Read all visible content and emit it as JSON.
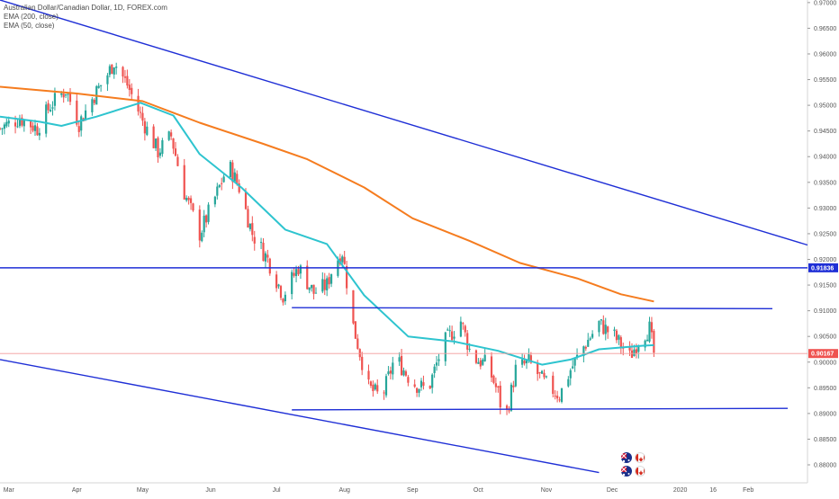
{
  "legend": {
    "symbol_line": "Australian Dollar/Canadian Dollar, 1D, FOREX.com",
    "ema200_label": "EMA (200, close)",
    "ema50_label": "EMA (50, close)"
  },
  "colors": {
    "up_candle": "#26a69a",
    "down_candle": "#ef5350",
    "ema200": "#f57c1f",
    "ema50": "#2ec4cf",
    "trendline": "#1f2fd6",
    "current_price_line": "#f29b9b",
    "current_price_tag": "#ef5350",
    "level_tag": "#1f2fd6"
  },
  "icons": [
    "australia-flag-icon",
    "canada-flag-icon",
    "event-flag-icon"
  ],
  "chart_data": {
    "type": "candlestick",
    "x_axis_labels": [
      "Mar",
      "Apr",
      "May",
      "Jun",
      "Jul",
      "Aug",
      "Sep",
      "Oct",
      "Nov",
      "Dec",
      "2020",
      "16",
      "Feb"
    ],
    "y_axis_labels": [
      "0.97000",
      "0.96500",
      "0.96000",
      "0.95500",
      "0.95000",
      "0.94500",
      "0.94000",
      "0.93500",
      "0.93000",
      "0.92500",
      "0.92000",
      "0.91500",
      "0.91000",
      "0.90500",
      "0.90000",
      "0.89500",
      "0.89000",
      "0.88500",
      "0.88000"
    ],
    "ylim": [
      0.8765,
      0.9705
    ],
    "price_tags": [
      {
        "label": "0.91836",
        "value": 0.91836,
        "role": "horizontal-level"
      },
      {
        "label": "0.90167",
        "value": 0.90167,
        "role": "current-price"
      }
    ],
    "trend_lines": [
      {
        "name": "upper-descending",
        "points": [
          [
            "2019-02-25",
            0.9705
          ],
          [
            "2020-02-28",
            0.9228
          ]
        ]
      },
      {
        "name": "lower-descending",
        "points": [
          [
            "2019-02-25",
            0.9005
          ],
          [
            "2019-11-25",
            0.8785
          ]
        ]
      },
      {
        "name": "resistance",
        "points": [
          [
            "2019-07-08",
            0.9106
          ],
          [
            "2020-02-12",
            0.9104
          ]
        ]
      },
      {
        "name": "support",
        "points": [
          [
            "2019-07-08",
            0.8907
          ],
          [
            "2020-02-19",
            0.891
          ]
        ]
      }
    ],
    "series": [
      {
        "name": "EMA (200, close)",
        "points": [
          [
            "2019-02-25",
            0.9536
          ],
          [
            "2019-04-01",
            0.9523
          ],
          [
            "2019-05-01",
            0.9508
          ],
          [
            "2019-05-27",
            0.9466
          ],
          [
            "2019-06-25",
            0.9425
          ],
          [
            "2019-07-15",
            0.9395
          ],
          [
            "2019-08-10",
            0.934
          ],
          [
            "2019-09-01",
            0.928
          ],
          [
            "2019-09-27",
            0.9236
          ],
          [
            "2019-10-20",
            0.9193
          ],
          [
            "2019-11-15",
            0.9163
          ],
          [
            "2019-12-05",
            0.9132
          ],
          [
            "2019-12-20",
            0.9118
          ]
        ]
      },
      {
        "name": "EMA (50, close)",
        "points": [
          [
            "2019-02-25",
            0.9478
          ],
          [
            "2019-03-15",
            0.9468
          ],
          [
            "2019-03-25",
            0.946
          ],
          [
            "2019-04-10",
            0.9478
          ],
          [
            "2019-04-30",
            0.9505
          ],
          [
            "2019-05-15",
            0.948
          ],
          [
            "2019-05-27",
            0.9405
          ],
          [
            "2019-06-15",
            0.934
          ],
          [
            "2019-07-05",
            0.9258
          ],
          [
            "2019-07-24",
            0.923
          ],
          [
            "2019-08-10",
            0.913
          ],
          [
            "2019-08-30",
            0.905
          ],
          [
            "2019-09-20",
            0.904
          ],
          [
            "2019-10-10",
            0.9022
          ],
          [
            "2019-10-30",
            0.8995
          ],
          [
            "2019-11-12",
            0.9005
          ],
          [
            "2019-11-25",
            0.9025
          ],
          [
            "2019-12-15",
            0.9032
          ],
          [
            "2019-12-20",
            0.9033
          ]
        ]
      }
    ],
    "price_path": [
      [
        "2019-02-25",
        0.9455
      ],
      [
        "2019-03-06",
        0.9475
      ],
      [
        "2019-03-14",
        0.9455
      ],
      [
        "2019-03-20",
        0.95
      ],
      [
        "2019-03-27",
        0.953
      ],
      [
        "2019-04-02",
        0.9465
      ],
      [
        "2019-04-09",
        0.952
      ],
      [
        "2019-04-15",
        0.956
      ],
      [
        "2019-04-18",
        0.9585
      ],
      [
        "2019-04-24",
        0.954
      ],
      [
        "2019-05-01",
        0.947
      ],
      [
        "2019-05-08",
        0.941
      ],
      [
        "2019-05-14",
        0.944
      ],
      [
        "2019-05-20",
        0.933
      ],
      [
        "2019-05-27",
        0.925
      ],
      [
        "2019-06-04",
        0.933
      ],
      [
        "2019-06-09",
        0.9385
      ],
      [
        "2019-06-14",
        0.934
      ],
      [
        "2019-06-20",
        0.925
      ],
      [
        "2019-06-27",
        0.92
      ],
      [
        "2019-07-04",
        0.913
      ],
      [
        "2019-07-11",
        0.9185
      ],
      [
        "2019-07-18",
        0.9135
      ],
      [
        "2019-07-24",
        0.915
      ],
      [
        "2019-07-27",
        0.919
      ],
      [
        "2019-07-31",
        0.9215
      ],
      [
        "2019-08-05",
        0.907
      ],
      [
        "2019-08-12",
        0.895
      ],
      [
        "2019-08-18",
        0.893
      ],
      [
        "2019-08-24",
        0.901
      ],
      [
        "2019-09-01",
        0.896
      ],
      [
        "2019-09-08",
        0.8945
      ],
      [
        "2019-09-15",
        0.9035
      ],
      [
        "2019-09-23",
        0.908
      ],
      [
        "2019-09-28",
        0.901
      ],
      [
        "2019-10-05",
        0.8995
      ],
      [
        "2019-10-10",
        0.894
      ],
      [
        "2019-10-13",
        0.888
      ],
      [
        "2019-10-18",
        0.8985
      ],
      [
        "2019-10-24",
        0.9
      ],
      [
        "2019-10-31",
        0.896
      ],
      [
        "2019-11-07",
        0.8935
      ],
      [
        "2019-11-12",
        0.8985
      ],
      [
        "2019-11-18",
        0.903
      ],
      [
        "2019-11-25",
        0.9075
      ],
      [
        "2019-12-02",
        0.905
      ],
      [
        "2019-12-09",
        0.901
      ],
      [
        "2019-12-14",
        0.905
      ],
      [
        "2019-12-18",
        0.9065
      ],
      [
        "2019-12-20",
        0.9017
      ]
    ]
  }
}
